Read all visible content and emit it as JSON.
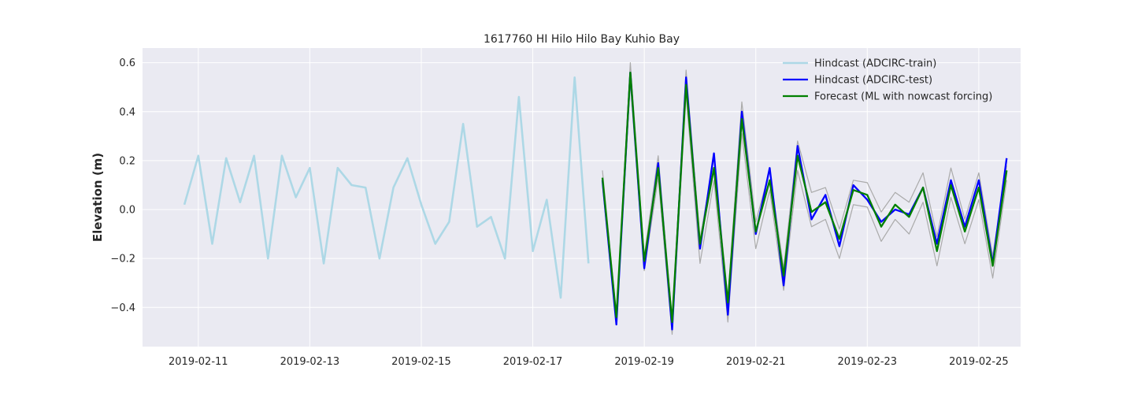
{
  "chart_data": {
    "type": "line",
    "title": "1617760 HI Hilo Hilo Bay Kuhio Bay",
    "xlabel": "",
    "ylabel": "Elevation (m)",
    "xlim": [
      "2019-02-10T00:00",
      "2019-02-25T18:00"
    ],
    "ylim": [
      -0.56,
      0.66
    ],
    "x_ticks": [
      "2019-02-11",
      "2019-02-13",
      "2019-02-15",
      "2019-02-17",
      "2019-02-19",
      "2019-02-21",
      "2019-02-23",
      "2019-02-25"
    ],
    "y_ticks": [
      -0.4,
      -0.2,
      0.0,
      0.2,
      0.4,
      0.6
    ],
    "y_tick_labels": [
      "−0.4",
      "−0.2",
      "0.0",
      "0.2",
      "0.4",
      "0.6"
    ],
    "grid": true,
    "legend_position": "top-right",
    "series": [
      {
        "name": "Hindcast (ADCIRC-train)",
        "color": "#add8e6",
        "x": [
          "2019-02-10T18:00",
          "2019-02-11T00:00",
          "2019-02-11T06:00",
          "2019-02-11T12:00",
          "2019-02-11T18:00",
          "2019-02-12T00:00",
          "2019-02-12T06:00",
          "2019-02-12T12:00",
          "2019-02-12T18:00",
          "2019-02-13T00:00",
          "2019-02-13T06:00",
          "2019-02-13T12:00",
          "2019-02-13T18:00",
          "2019-02-14T00:00",
          "2019-02-14T06:00",
          "2019-02-14T12:00",
          "2019-02-14T18:00",
          "2019-02-15T00:00",
          "2019-02-15T06:00",
          "2019-02-15T12:00",
          "2019-02-15T18:00",
          "2019-02-16T00:00",
          "2019-02-16T06:00",
          "2019-02-16T12:00",
          "2019-02-16T18:00",
          "2019-02-17T00:00",
          "2019-02-17T06:00",
          "2019-02-17T12:00",
          "2019-02-17T18:00",
          "2019-02-18T00:00"
        ],
        "y": [
          0.02,
          0.22,
          -0.14,
          0.21,
          0.03,
          0.22,
          -0.2,
          0.22,
          0.05,
          0.17,
          -0.22,
          0.17,
          0.1,
          0.09,
          -0.2,
          0.09,
          0.21,
          0.02,
          -0.14,
          -0.05,
          0.35,
          -0.07,
          -0.03,
          -0.2,
          0.46,
          -0.17,
          0.04,
          -0.36,
          0.54,
          -0.22
        ]
      },
      {
        "name": "Hindcast (ADCIRC-test)",
        "color": "#0000ff",
        "x": [
          "2019-02-18T06:00",
          "2019-02-18T12:00",
          "2019-02-18T18:00",
          "2019-02-19T00:00",
          "2019-02-19T06:00",
          "2019-02-19T12:00",
          "2019-02-19T18:00",
          "2019-02-20T00:00",
          "2019-02-20T06:00",
          "2019-02-20T12:00",
          "2019-02-20T18:00",
          "2019-02-21T00:00",
          "2019-02-21T06:00",
          "2019-02-21T12:00",
          "2019-02-21T18:00",
          "2019-02-22T00:00",
          "2019-02-22T06:00",
          "2019-02-22T12:00",
          "2019-02-22T18:00",
          "2019-02-23T00:00",
          "2019-02-23T06:00",
          "2019-02-23T12:00",
          "2019-02-23T18:00",
          "2019-02-24T00:00",
          "2019-02-24T06:00",
          "2019-02-24T12:00",
          "2019-02-24T18:00",
          "2019-02-25T00:00",
          "2019-02-25T06:00",
          "2019-02-25T12:00"
        ],
        "y": [
          0.12,
          -0.47,
          0.56,
          -0.24,
          0.19,
          -0.49,
          0.54,
          -0.16,
          0.23,
          -0.43,
          0.4,
          -0.1,
          0.17,
          -0.31,
          0.26,
          -0.04,
          0.06,
          -0.15,
          0.1,
          0.04,
          -0.05,
          0.0,
          -0.02,
          0.09,
          -0.14,
          0.12,
          -0.07,
          0.12,
          -0.22,
          0.21
        ]
      },
      {
        "name": "Forecast (ML with nowcast forcing)",
        "color": "#008000",
        "x": [
          "2019-02-18T06:00",
          "2019-02-18T12:00",
          "2019-02-18T18:00",
          "2019-02-19T00:00",
          "2019-02-19T06:00",
          "2019-02-19T12:00",
          "2019-02-19T18:00",
          "2019-02-20T00:00",
          "2019-02-20T06:00",
          "2019-02-20T12:00",
          "2019-02-20T18:00",
          "2019-02-21T00:00",
          "2019-02-21T06:00",
          "2019-02-21T12:00",
          "2019-02-21T18:00",
          "2019-02-22T00:00",
          "2019-02-22T06:00",
          "2019-02-22T12:00",
          "2019-02-22T18:00",
          "2019-02-23T00:00",
          "2019-02-23T06:00",
          "2019-02-23T12:00",
          "2019-02-23T18:00",
          "2019-02-24T00:00",
          "2019-02-24T06:00",
          "2019-02-24T12:00",
          "2019-02-24T18:00",
          "2019-02-25T00:00",
          "2019-02-25T06:00",
          "2019-02-25T12:00"
        ],
        "y": [
          0.13,
          -0.44,
          0.56,
          -0.21,
          0.17,
          -0.46,
          0.51,
          -0.14,
          0.17,
          -0.38,
          0.37,
          -0.09,
          0.12,
          -0.27,
          0.22,
          -0.01,
          0.03,
          -0.12,
          0.08,
          0.06,
          -0.07,
          0.02,
          -0.03,
          0.09,
          -0.17,
          0.1,
          -0.09,
          0.09,
          -0.23,
          0.16
        ]
      },
      {
        "name": "",
        "color": "#aaaaaa",
        "x": [
          "2019-02-18T06:00",
          "2019-02-18T12:00",
          "2019-02-18T18:00",
          "2019-02-19T00:00",
          "2019-02-19T06:00",
          "2019-02-19T12:00",
          "2019-02-19T18:00",
          "2019-02-20T00:00",
          "2019-02-20T06:00",
          "2019-02-20T12:00",
          "2019-02-20T18:00",
          "2019-02-21T00:00",
          "2019-02-21T06:00",
          "2019-02-21T12:00",
          "2019-02-21T18:00",
          "2019-02-22T00:00",
          "2019-02-22T06:00",
          "2019-02-22T12:00",
          "2019-02-22T18:00",
          "2019-02-23T00:00",
          "2019-02-23T06:00",
          "2019-02-23T12:00",
          "2019-02-23T18:00",
          "2019-02-24T00:00",
          "2019-02-24T06:00",
          "2019-02-24T12:00",
          "2019-02-24T18:00",
          "2019-02-25T00:00",
          "2019-02-25T06:00",
          "2019-02-25T12:00"
        ],
        "y": [
          0.16,
          -0.43,
          0.6,
          -0.19,
          0.22,
          -0.45,
          0.57,
          -0.12,
          0.21,
          -0.36,
          0.44,
          -0.05,
          0.16,
          -0.24,
          0.28,
          0.07,
          0.09,
          -0.08,
          0.12,
          0.11,
          -0.01,
          0.07,
          0.03,
          0.15,
          -0.11,
          0.17,
          -0.04,
          0.15,
          -0.19,
          0.18
        ]
      },
      {
        "name": "",
        "color": "#aaaaaa",
        "x": [
          "2019-02-18T06:00",
          "2019-02-18T12:00",
          "2019-02-18T18:00",
          "2019-02-19T00:00",
          "2019-02-19T06:00",
          "2019-02-19T12:00",
          "2019-02-19T18:00",
          "2019-02-20T00:00",
          "2019-02-20T06:00",
          "2019-02-20T12:00",
          "2019-02-20T18:00",
          "2019-02-21T00:00",
          "2019-02-21T06:00",
          "2019-02-21T12:00",
          "2019-02-21T18:00",
          "2019-02-22T00:00",
          "2019-02-22T06:00",
          "2019-02-22T12:00",
          "2019-02-22T18:00",
          "2019-02-23T00:00",
          "2019-02-23T06:00",
          "2019-02-23T12:00",
          "2019-02-23T18:00",
          "2019-02-24T00:00",
          "2019-02-24T06:00",
          "2019-02-24T12:00",
          "2019-02-24T18:00",
          "2019-02-25T00:00",
          "2019-02-25T06:00",
          "2019-02-25T12:00"
        ],
        "y": [
          0.1,
          -0.47,
          0.52,
          -0.25,
          0.13,
          -0.51,
          0.47,
          -0.22,
          0.12,
          -0.46,
          0.31,
          -0.16,
          0.08,
          -0.33,
          0.16,
          -0.07,
          -0.04,
          -0.2,
          0.02,
          0.01,
          -0.13,
          -0.04,
          -0.1,
          0.03,
          -0.23,
          0.05,
          -0.14,
          0.04,
          -0.28,
          0.12
        ]
      }
    ]
  }
}
